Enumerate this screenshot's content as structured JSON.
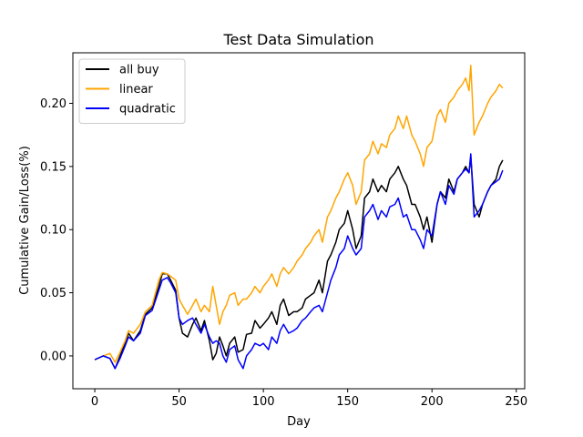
{
  "chart_data": {
    "type": "line",
    "title": "Test Data Simulation",
    "xlabel": "Day",
    "ylabel": "Cumulative Gain/Loss(%)",
    "xlim": [
      -13,
      255
    ],
    "ylim": [
      -0.026,
      0.24
    ],
    "xticks": [
      0,
      50,
      100,
      150,
      200,
      250
    ],
    "yticks": [
      0.0,
      0.05,
      0.1,
      0.15,
      0.2
    ],
    "ytick_labels": [
      "0.00",
      "0.05",
      "0.10",
      "0.15",
      "0.20"
    ],
    "grid": false,
    "legend_position": "upper left",
    "series": [
      {
        "name": "all buy",
        "color": "#000000",
        "x": [
          0,
          5,
          9,
          12,
          15,
          18,
          20,
          23,
          27,
          30,
          34,
          38,
          40,
          43,
          45,
          48,
          50,
          52,
          55,
          58,
          60,
          63,
          65,
          68,
          70,
          72,
          74,
          76,
          78,
          80,
          83,
          85,
          88,
          90,
          93,
          95,
          98,
          100,
          103,
          105,
          108,
          110,
          112,
          115,
          118,
          120,
          123,
          125,
          128,
          130,
          133,
          135,
          138,
          140,
          143,
          145,
          148,
          150,
          153,
          155,
          158,
          160,
          163,
          165,
          168,
          170,
          173,
          175,
          178,
          180,
          183,
          185,
          188,
          190,
          193,
          195,
          197,
          200,
          203,
          205,
          208,
          210,
          213,
          215,
          218,
          220,
          222,
          223,
          225,
          228,
          230,
          233,
          235,
          238,
          240,
          242
        ],
        "y": [
          -0.003,
          0.0,
          -0.002,
          -0.01,
          0.0,
          0.01,
          0.018,
          0.012,
          0.02,
          0.033,
          0.038,
          0.055,
          0.065,
          0.065,
          0.06,
          0.052,
          0.03,
          0.018,
          0.015,
          0.025,
          0.03,
          0.02,
          0.028,
          0.012,
          -0.003,
          0.002,
          0.015,
          0.008,
          0.0,
          0.01,
          0.015,
          0.003,
          0.005,
          0.017,
          0.018,
          0.028,
          0.022,
          0.025,
          0.03,
          0.035,
          0.025,
          0.04,
          0.045,
          0.032,
          0.035,
          0.035,
          0.038,
          0.045,
          0.048,
          0.05,
          0.06,
          0.05,
          0.075,
          0.08,
          0.09,
          0.1,
          0.105,
          0.115,
          0.1,
          0.085,
          0.095,
          0.125,
          0.13,
          0.14,
          0.13,
          0.135,
          0.13,
          0.14,
          0.145,
          0.15,
          0.14,
          0.135,
          0.12,
          0.12,
          0.11,
          0.1,
          0.11,
          0.09,
          0.12,
          0.13,
          0.125,
          0.14,
          0.13,
          0.14,
          0.145,
          0.15,
          0.145,
          0.158,
          0.12,
          0.11,
          0.12,
          0.13,
          0.135,
          0.14,
          0.15,
          0.155
        ]
      },
      {
        "name": "linear",
        "color": "#ffa500",
        "x": [
          0,
          5,
          9,
          12,
          15,
          18,
          20,
          23,
          27,
          30,
          34,
          38,
          40,
          43,
          45,
          48,
          50,
          52,
          55,
          58,
          60,
          63,
          65,
          68,
          70,
          72,
          74,
          76,
          78,
          80,
          83,
          85,
          88,
          90,
          93,
          95,
          98,
          100,
          103,
          105,
          108,
          110,
          112,
          115,
          118,
          120,
          123,
          125,
          128,
          130,
          133,
          135,
          138,
          140,
          143,
          145,
          148,
          150,
          153,
          155,
          158,
          160,
          163,
          165,
          168,
          170,
          173,
          175,
          178,
          180,
          183,
          185,
          188,
          190,
          193,
          195,
          197,
          200,
          203,
          205,
          208,
          210,
          213,
          215,
          218,
          220,
          222,
          223,
          225,
          228,
          230,
          233,
          235,
          238,
          240,
          242
        ],
        "y": [
          -0.003,
          0.0,
          0.002,
          -0.005,
          0.003,
          0.012,
          0.02,
          0.018,
          0.025,
          0.035,
          0.04,
          0.06,
          0.066,
          0.065,
          0.063,
          0.06,
          0.045,
          0.04,
          0.033,
          0.04,
          0.045,
          0.035,
          0.04,
          0.035,
          0.055,
          0.04,
          0.025,
          0.035,
          0.04,
          0.048,
          0.05,
          0.04,
          0.045,
          0.045,
          0.05,
          0.055,
          0.05,
          0.055,
          0.06,
          0.065,
          0.055,
          0.065,
          0.07,
          0.065,
          0.07,
          0.075,
          0.08,
          0.085,
          0.09,
          0.095,
          0.1,
          0.09,
          0.11,
          0.115,
          0.125,
          0.13,
          0.14,
          0.145,
          0.135,
          0.12,
          0.13,
          0.155,
          0.16,
          0.17,
          0.16,
          0.168,
          0.165,
          0.175,
          0.18,
          0.19,
          0.18,
          0.19,
          0.175,
          0.17,
          0.16,
          0.15,
          0.165,
          0.17,
          0.19,
          0.195,
          0.185,
          0.2,
          0.205,
          0.21,
          0.215,
          0.22,
          0.21,
          0.23,
          0.175,
          0.185,
          0.19,
          0.2,
          0.205,
          0.21,
          0.215,
          0.212
        ]
      },
      {
        "name": "quadratic",
        "color": "#0000ff",
        "x": [
          0,
          5,
          9,
          12,
          15,
          18,
          20,
          23,
          27,
          30,
          34,
          38,
          40,
          43,
          45,
          48,
          50,
          52,
          55,
          58,
          60,
          63,
          65,
          68,
          70,
          72,
          74,
          76,
          78,
          80,
          83,
          85,
          88,
          90,
          93,
          95,
          98,
          100,
          103,
          105,
          108,
          110,
          112,
          115,
          118,
          120,
          123,
          125,
          128,
          130,
          133,
          135,
          138,
          140,
          143,
          145,
          148,
          150,
          153,
          155,
          158,
          160,
          163,
          165,
          168,
          170,
          173,
          175,
          178,
          180,
          183,
          185,
          188,
          190,
          193,
          195,
          197,
          200,
          203,
          205,
          208,
          210,
          213,
          215,
          218,
          220,
          222,
          223,
          225,
          228,
          230,
          233,
          235,
          238,
          240,
          242
        ],
        "y": [
          -0.003,
          0.0,
          -0.002,
          -0.01,
          -0.002,
          0.008,
          0.015,
          0.012,
          0.018,
          0.032,
          0.036,
          0.052,
          0.06,
          0.062,
          0.058,
          0.05,
          0.03,
          0.025,
          0.028,
          0.03,
          0.025,
          0.018,
          0.025,
          0.015,
          0.01,
          0.012,
          0.01,
          0.0,
          -0.005,
          0.005,
          0.008,
          -0.003,
          -0.01,
          0.0,
          0.005,
          0.01,
          0.008,
          0.01,
          0.005,
          0.015,
          0.01,
          0.02,
          0.025,
          0.018,
          0.02,
          0.022,
          0.028,
          0.03,
          0.035,
          0.038,
          0.04,
          0.035,
          0.05,
          0.06,
          0.07,
          0.08,
          0.085,
          0.095,
          0.085,
          0.08,
          0.085,
          0.11,
          0.115,
          0.12,
          0.108,
          0.115,
          0.11,
          0.118,
          0.12,
          0.125,
          0.11,
          0.112,
          0.1,
          0.1,
          0.092,
          0.085,
          0.1,
          0.095,
          0.12,
          0.13,
          0.12,
          0.135,
          0.128,
          0.14,
          0.145,
          0.148,
          0.145,
          0.16,
          0.11,
          0.115,
          0.12,
          0.13,
          0.135,
          0.138,
          0.14,
          0.147
        ]
      }
    ]
  }
}
